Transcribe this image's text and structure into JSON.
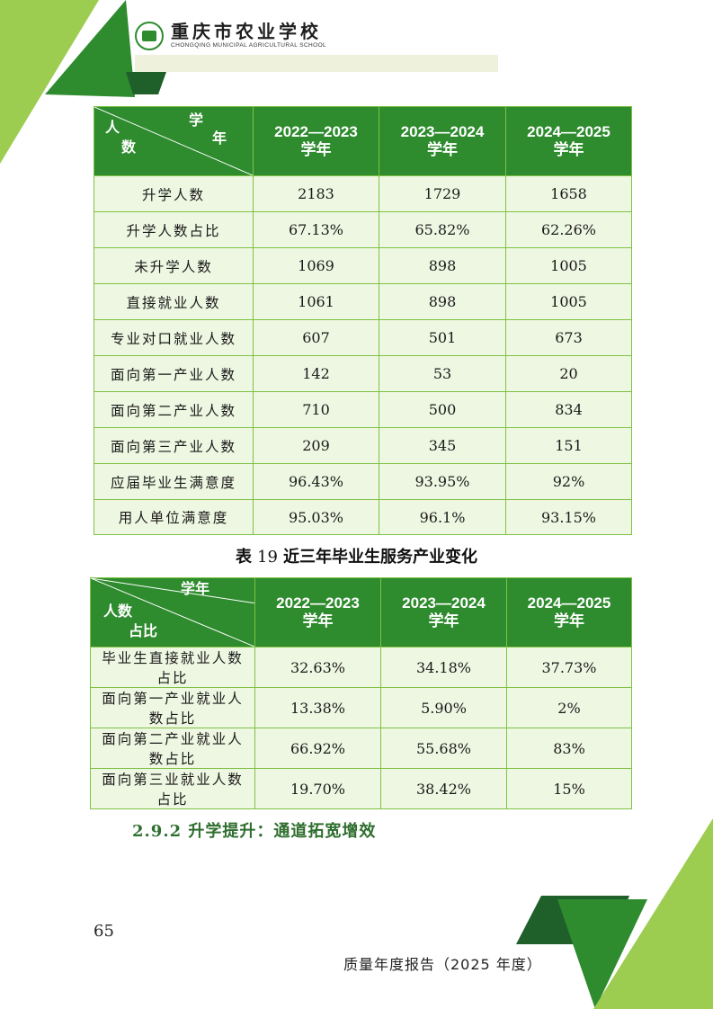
{
  "header": {
    "school_cn": "重庆市农业学校",
    "school_en": "CHONGQING MUNICIPAL AGRICULTURAL SCHOOL"
  },
  "colors": {
    "brand_green": "#2e8b2e",
    "light_green": "#9ccc50",
    "dark_green": "#1f5f2a",
    "cell_bg": "#eef7e2"
  },
  "table1": {
    "corner": {
      "top": "学",
      "mid": "年",
      "left_top": "人",
      "left_bottom": "数"
    },
    "years": [
      {
        "line1": "2022—2023",
        "line2": "学年"
      },
      {
        "line1": "2023—2024",
        "line2": "学年"
      },
      {
        "line1": "2024—2025",
        "line2": "学年"
      }
    ],
    "rows": [
      {
        "label": "升学人数",
        "v": [
          "2183",
          "1729",
          "1658"
        ]
      },
      {
        "label": "升学人数占比",
        "v": [
          "67.13%",
          "65.82%",
          "62.26%"
        ]
      },
      {
        "label": "未升学人数",
        "v": [
          "1069",
          "898",
          "1005"
        ]
      },
      {
        "label": "直接就业人数",
        "v": [
          "1061",
          "898",
          "1005"
        ]
      },
      {
        "label": "专业对口就业人数",
        "v": [
          "607",
          "501",
          "673"
        ]
      },
      {
        "label": "面向第一产业人数",
        "v": [
          "142",
          "53",
          "20"
        ]
      },
      {
        "label": "面向第二产业人数",
        "v": [
          "710",
          "500",
          "834"
        ]
      },
      {
        "label": "面向第三产业人数",
        "v": [
          "209",
          "345",
          "151"
        ]
      },
      {
        "label": "应届毕业生满意度",
        "v": [
          "96.43%",
          "93.95%",
          "92%"
        ]
      },
      {
        "label": "用人单位满意度",
        "v": [
          "95.03%",
          "96.1%",
          "93.15%"
        ]
      }
    ]
  },
  "caption": {
    "prefix": "表",
    "num": "19",
    "text": "近三年毕业生服务产业变化"
  },
  "table2": {
    "corner": {
      "top": "学年",
      "mid": "人数",
      "bottom": "占比"
    },
    "years": [
      {
        "line1": "2022—2023",
        "line2": "学年"
      },
      {
        "line1": "2023—2024",
        "line2": "学年"
      },
      {
        "line1": "2024—2025",
        "line2": "学年"
      }
    ],
    "rows": [
      {
        "l1": "毕业生直接就业人数",
        "l2": "占比",
        "v": [
          "32.63%",
          "34.18%",
          "37.73%"
        ]
      },
      {
        "l1": "面向第一产业就业人",
        "l2": "数占比",
        "v": [
          "13.38%",
          "5.90%",
          "2%"
        ]
      },
      {
        "l1": "面向第二产业就业人",
        "l2": "数占比",
        "v": [
          "66.92%",
          "55.68%",
          "83%"
        ]
      },
      {
        "l1": "面向第三业就业人数",
        "l2": "占比",
        "v": [
          "19.70%",
          "38.42%",
          "15%"
        ]
      }
    ]
  },
  "section": {
    "number": "2.9.2",
    "title": "升学提升：通道拓宽增效"
  },
  "page_number": "65",
  "footer": "质量年度报告（2025 年度）"
}
